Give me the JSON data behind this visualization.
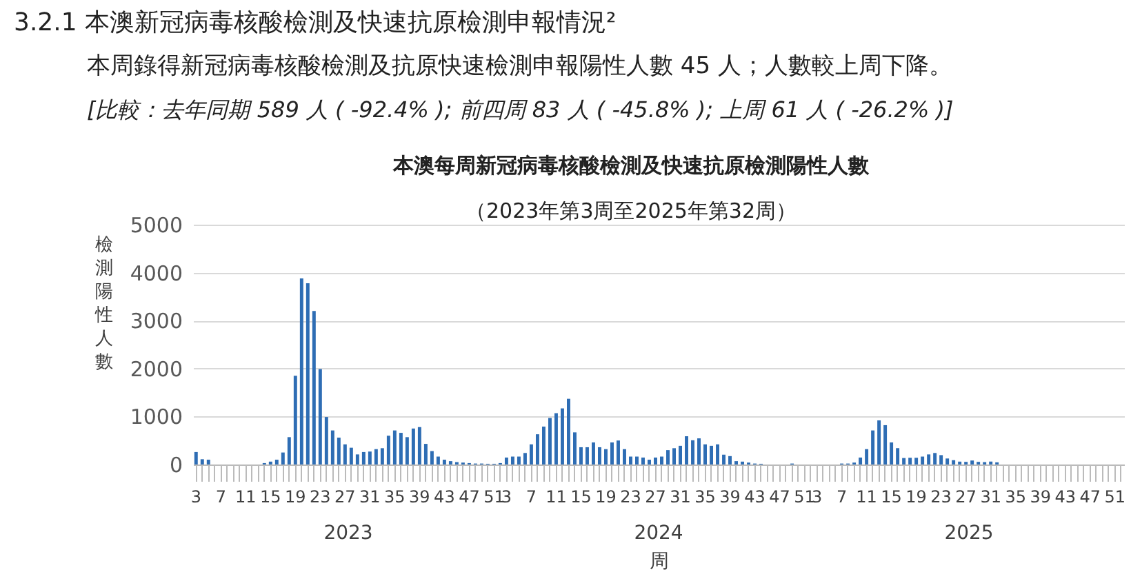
{
  "chart_data": {
    "type": "bar",
    "title": "本澳每周新冠病毒核酸檢測及快速抗原檢測陽性人數",
    "subtitle": "（2023年第3周至2025年第32周）",
    "xlabel": "周",
    "ylabel": "檢測陽性人數",
    "annotations": [
      "3.2.1 本澳新冠病毒核酸檢測及快速抗原檢測申報情況²",
      "本周錄得新冠病毒核酸檢測及抗原快速檢測申報陽性人數 45 人；人數較上周下降。",
      "[比較：去年同期 589 人 ( -92.4% ); 前四周 83 人 ( -45.8% ); 上周 61 人 ( -26.2% )]",
      "2023",
      "2024",
      "2025"
    ],
    "categories": [
      "3",
      null,
      null,
      null,
      "7",
      null,
      null,
      null,
      "11",
      null,
      null,
      null,
      "15",
      null,
      null,
      null,
      "19",
      null,
      null,
      null,
      "23",
      null,
      null,
      null,
      "27",
      null,
      null,
      null,
      "31",
      null,
      null,
      null,
      "35",
      null,
      null,
      null,
      "39",
      null,
      null,
      null,
      "43",
      null,
      null,
      null,
      "47",
      null,
      null,
      null,
      "51",
      null,
      "3",
      null,
      null,
      null,
      "7",
      null,
      null,
      null,
      "11",
      null,
      null,
      null,
      "15",
      null,
      null,
      null,
      "19",
      null,
      null,
      null,
      "23",
      null,
      null,
      null,
      "27",
      null,
      null,
      null,
      "31",
      null,
      null,
      null,
      "35",
      null,
      null,
      null,
      "39",
      null,
      null,
      null,
      "43",
      null,
      null,
      null,
      "47",
      null,
      null,
      null,
      "51",
      null,
      "3",
      null,
      null,
      null,
      "7",
      null,
      null,
      null,
      "11",
      null,
      null,
      null,
      "15",
      null,
      null,
      null,
      "19",
      null,
      null,
      null,
      "23",
      null,
      null,
      null,
      "27",
      null,
      null,
      null,
      "31",
      null,
      null,
      null,
      "35",
      null,
      null,
      null,
      "39",
      null,
      null,
      null,
      "43",
      null,
      null,
      null,
      "47",
      null,
      null,
      null,
      "51",
      null
    ],
    "values": [
      260,
      110,
      100,
      0,
      0,
      0,
      0,
      0,
      0,
      0,
      0,
      30,
      60,
      100,
      250,
      570,
      1850,
      3880,
      3780,
      3200,
      1990,
      990,
      710,
      560,
      420,
      350,
      210,
      260,
      270,
      320,
      340,
      600,
      710,
      660,
      570,
      750,
      780,
      430,
      280,
      165,
      100,
      70,
      50,
      40,
      30,
      20,
      20,
      15,
      15,
      30,
      145,
      165,
      165,
      240,
      420,
      630,
      790,
      970,
      1070,
      1170,
      1370,
      670,
      360,
      360,
      460,
      360,
      320,
      460,
      500,
      320,
      165,
      165,
      145,
      100,
      145,
      165,
      300,
      340,
      390,
      589,
      505,
      545,
      420,
      390,
      420,
      205,
      175,
      70,
      60,
      40,
      20,
      15,
      null,
      null,
      null,
      null,
      20,
      0,
      0,
      0,
      0,
      0,
      0,
      0,
      20,
      20,
      40,
      145,
      320,
      710,
      920,
      820,
      460,
      340,
      135,
      140,
      140,
      165,
      210,
      240,
      195,
      125,
      90,
      60,
      55,
      83,
      55,
      50,
      61,
      45,
      null,
      null,
      null,
      null,
      null,
      null,
      null,
      null,
      null,
      null,
      null,
      null,
      null,
      null,
      null,
      null,
      null,
      null,
      null,
      null
    ],
    "color": "#2e6db4",
    "ylim": [
      0,
      5000
    ],
    "yticks": [
      0,
      1000,
      2000,
      3000,
      4000,
      5000
    ],
    "grid": "y"
  }
}
